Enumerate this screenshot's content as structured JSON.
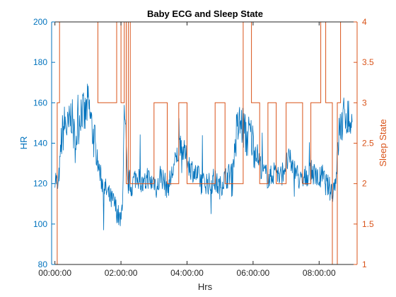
{
  "chart_data": {
    "type": "line",
    "title": "Baby ECG and Sleep State",
    "xlabel": "Hrs",
    "ylabel_left": "HR",
    "ylabel_right": "Sleep State",
    "xlim": [
      -0.1,
      9.15
    ],
    "ylim_left": [
      80,
      200
    ],
    "ylim_right": [
      1,
      4
    ],
    "x_ticks": [
      {
        "value": 0,
        "label": "00:00:00"
      },
      {
        "value": 2,
        "label": "02:00:00"
      },
      {
        "value": 4,
        "label": "04:00:00"
      },
      {
        "value": 6,
        "label": "06:00:00"
      },
      {
        "value": 8,
        "label": "08:00:00"
      }
    ],
    "y_left_ticks": [
      {
        "value": 80,
        "label": "80"
      },
      {
        "value": 100,
        "label": "100"
      },
      {
        "value": 120,
        "label": "120"
      },
      {
        "value": 140,
        "label": "140"
      },
      {
        "value": 160,
        "label": "160"
      },
      {
        "value": 180,
        "label": "180"
      },
      {
        "value": 200,
        "label": "200"
      }
    ],
    "y_right_ticks": [
      {
        "value": 1,
        "label": "1"
      },
      {
        "value": 1.5,
        "label": "1.5"
      },
      {
        "value": 2,
        "label": "2"
      },
      {
        "value": 2.5,
        "label": "2.5"
      },
      {
        "value": 3,
        "label": "3"
      },
      {
        "value": 3.5,
        "label": "3.5"
      },
      {
        "value": 4,
        "label": "4"
      }
    ],
    "grid": false,
    "colors": {
      "left": "#0072BD",
      "right": "#D95319"
    },
    "hr_series": {
      "x": [
        0.0,
        0.1,
        0.2,
        0.3,
        0.4,
        0.5,
        0.6,
        0.7,
        0.8,
        0.9,
        1.0,
        1.1,
        1.2,
        1.3,
        1.4,
        1.5,
        1.6,
        1.7,
        1.8,
        1.9,
        2.0,
        2.05,
        2.1,
        2.15,
        2.2,
        2.25,
        2.3,
        2.4,
        2.5,
        2.6,
        2.7,
        2.8,
        2.9,
        3.0,
        3.1,
        3.2,
        3.3,
        3.4,
        3.5,
        3.6,
        3.7,
        3.8,
        3.9,
        4.0,
        4.1,
        4.2,
        4.3,
        4.4,
        4.5,
        4.6,
        4.7,
        4.8,
        4.9,
        5.0,
        5.1,
        5.2,
        5.3,
        5.4,
        5.5,
        5.6,
        5.7,
        5.8,
        5.9,
        6.0,
        6.1,
        6.2,
        6.3,
        6.4,
        6.5,
        6.6,
        6.7,
        6.8,
        6.9,
        7.0,
        7.1,
        7.2,
        7.3,
        7.4,
        7.5,
        7.6,
        7.7,
        7.8,
        7.9,
        8.0,
        8.1,
        8.2,
        8.3,
        8.4,
        8.5,
        8.6,
        8.7,
        8.8,
        8.9,
        9.0
      ],
      "y": [
        124,
        118,
        142,
        150,
        146,
        155,
        140,
        148,
        158,
        152,
        160,
        150,
        140,
        130,
        122,
        118,
        115,
        112,
        110,
        105,
        100,
        115,
        150,
        140,
        118,
        122,
        118,
        122,
        125,
        120,
        118,
        124,
        120,
        122,
        117,
        125,
        121,
        118,
        122,
        128,
        134,
        138,
        136,
        132,
        128,
        126,
        124,
        122,
        120,
        121,
        119,
        122,
        120,
        118,
        122,
        123,
        125,
        130,
        145,
        150,
        148,
        142,
        145,
        140,
        136,
        130,
        126,
        124,
        122,
        125,
        128,
        122,
        126,
        130,
        132,
        128,
        126,
        122,
        120,
        124,
        125,
        126,
        123,
        122,
        124,
        120,
        118,
        116,
        122,
        145,
        150,
        155,
        152,
        148
      ]
    },
    "sleep_series": {
      "x": [
        0.0,
        0.07,
        0.07,
        0.14,
        0.14,
        0.2,
        0.2,
        1.3,
        1.3,
        1.87,
        1.87,
        2.0,
        2.0,
        2.1,
        2.1,
        2.16,
        2.16,
        2.22,
        2.22,
        2.28,
        2.28,
        2.35,
        2.35,
        3.0,
        3.0,
        3.4,
        3.4,
        3.75,
        3.75,
        4.0,
        4.0,
        4.85,
        4.85,
        5.15,
        5.15,
        5.7,
        5.7,
        5.95,
        5.95,
        6.2,
        6.2,
        6.45,
        6.45,
        6.7,
        6.7,
        7.0,
        7.0,
        7.5,
        7.5,
        7.75,
        7.75,
        8.05,
        8.05,
        8.2,
        8.2,
        8.4,
        8.4,
        8.55,
        8.55,
        8.65,
        8.65,
        9.15
      ],
      "y": [
        1,
        1,
        3,
        3,
        4,
        4,
        4,
        4,
        3,
        3,
        4,
        4,
        3,
        3,
        4,
        4,
        2,
        2,
        4,
        4,
        2,
        2,
        2,
        2,
        3,
        3,
        2,
        2,
        3,
        3,
        2,
        2,
        3,
        3,
        2,
        2,
        4,
        4,
        3,
        3,
        2,
        2,
        3,
        3,
        2,
        2,
        3,
        3,
        2,
        2,
        3,
        3,
        4,
        4,
        3,
        3,
        1,
        1,
        3,
        3,
        4,
        4
      ]
    }
  }
}
